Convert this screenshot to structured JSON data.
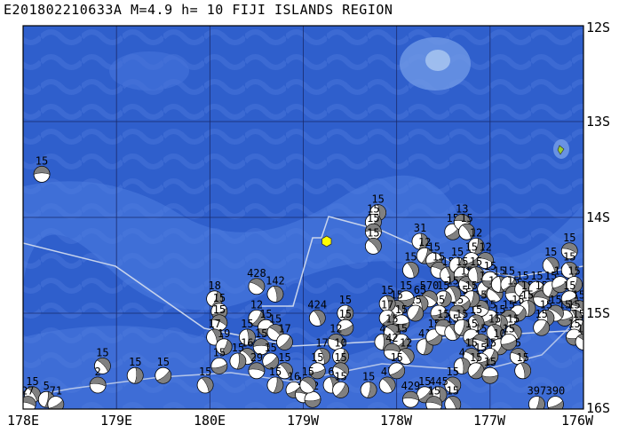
{
  "title": "E201802210633A M=4.9 h= 10 FIJI ISLANDS REGION",
  "colors": {
    "ocean_deep": "#2b57c6",
    "ocean_mid": "#3a68d6",
    "ocean_light": "#5a86e0",
    "shallow": "#86aee8",
    "grid": "#1a2a6a",
    "plate_boundary": "#c8d4ec",
    "event_marker": "#ffff00",
    "island": "#9acd32",
    "mechanism_fill": "#808080"
  },
  "lat_labels": [
    "12S",
    "13S",
    "14S",
    "15S",
    "16S"
  ],
  "lon_labels": [
    "178E",
    "179E",
    "180E",
    "179W",
    "178W",
    "177W",
    "176W"
  ],
  "event": {
    "lon": -178.75,
    "lat": -14.25
  },
  "mechanisms": [
    {
      "lon": 178.2,
      "lat": -13.55,
      "label": "15"
    },
    {
      "lon": 178.85,
      "lat": -15.55,
      "label": "15"
    },
    {
      "lon": 179.2,
      "lat": -15.65,
      "label": "15"
    },
    {
      "lon": 179.5,
      "lat": -15.65,
      "label": "15"
    },
    {
      "lon": 178.8,
      "lat": -15.75,
      "label": "2"
    },
    {
      "lon": 178.1,
      "lat": -15.85,
      "label": "15"
    },
    {
      "lon": 178.25,
      "lat": -15.9,
      "label": "5"
    },
    {
      "lon": 178.35,
      "lat": -15.95,
      "label": "71"
    },
    {
      "lon": 178.05,
      "lat": -15.95,
      "label": "27"
    },
    {
      "lon": 179.95,
      "lat": -15.75,
      "label": "15"
    },
    {
      "lon": 180.05,
      "lat": -14.85,
      "label": "18"
    },
    {
      "lon": 180.1,
      "lat": -14.98,
      "label": "15"
    },
    {
      "lon": 180.1,
      "lat": -15.1,
      "label": "15"
    },
    {
      "lon": 180.05,
      "lat": -15.25,
      "label": "17"
    },
    {
      "lon": 180.15,
      "lat": -15.35,
      "label": "19"
    },
    {
      "lon": 180.1,
      "lat": -15.55,
      "label": "15"
    },
    {
      "lon": -179.5,
      "lat": -14.72,
      "label": "428"
    },
    {
      "lon": -179.3,
      "lat": -14.8,
      "label": "142"
    },
    {
      "lon": -179.5,
      "lat": -15.05,
      "label": "12"
    },
    {
      "lon": -179.4,
      "lat": -15.15,
      "label": "15"
    },
    {
      "lon": -179.3,
      "lat": -15.2,
      "label": "15"
    },
    {
      "lon": -179.6,
      "lat": -15.25,
      "label": "15"
    },
    {
      "lon": -179.2,
      "lat": -15.3,
      "label": "17"
    },
    {
      "lon": -179.45,
      "lat": -15.35,
      "label": "15"
    },
    {
      "lon": -179.6,
      "lat": -15.45,
      "label": "16"
    },
    {
      "lon": -179.7,
      "lat": -15.5,
      "label": "15"
    },
    {
      "lon": -179.35,
      "lat": -15.5,
      "label": "15"
    },
    {
      "lon": -179.5,
      "lat": -15.6,
      "label": "29"
    },
    {
      "lon": -179.2,
      "lat": -15.6,
      "label": "15"
    },
    {
      "lon": -179.3,
      "lat": -15.75,
      "label": "15"
    },
    {
      "lon": -179.1,
      "lat": -15.8,
      "label": "16"
    },
    {
      "lon": -179.0,
      "lat": -15.85,
      "label": "15"
    },
    {
      "lon": -178.85,
      "lat": -15.05,
      "label": "424"
    },
    {
      "lon": -178.55,
      "lat": -15.0,
      "label": "15"
    },
    {
      "lon": -178.55,
      "lat": -15.15,
      "label": "15"
    },
    {
      "lon": -178.65,
      "lat": -15.3,
      "label": "12"
    },
    {
      "lon": -178.8,
      "lat": -15.45,
      "label": "17"
    },
    {
      "lon": -178.6,
      "lat": -15.45,
      "label": "10"
    },
    {
      "lon": -178.85,
      "lat": -15.6,
      "label": "15"
    },
    {
      "lon": -178.6,
      "lat": -15.6,
      "label": "15"
    },
    {
      "lon": -178.7,
      "lat": -15.75,
      "label": "6"
    },
    {
      "lon": -178.6,
      "lat": -15.8,
      "label": "15"
    },
    {
      "lon": -178.9,
      "lat": -15.9,
      "label": "12"
    },
    {
      "lon": -178.95,
      "lat": -15.75,
      "label": "15"
    },
    {
      "lon": -178.2,
      "lat": -13.95,
      "label": "15"
    },
    {
      "lon": -178.25,
      "lat": -14.05,
      "label": "15"
    },
    {
      "lon": -178.25,
      "lat": -14.15,
      "label": "15"
    },
    {
      "lon": -178.25,
      "lat": -14.3,
      "label": "15"
    },
    {
      "lon": -177.75,
      "lat": -14.25,
      "label": "31"
    },
    {
      "lon": -177.4,
      "lat": -14.15,
      "label": "15"
    },
    {
      "lon": -177.3,
      "lat": -14.05,
      "label": "13"
    },
    {
      "lon": -177.25,
      "lat": -14.15,
      "label": "15"
    },
    {
      "lon": -177.15,
      "lat": -14.3,
      "label": "12"
    },
    {
      "lon": -177.2,
      "lat": -14.45,
      "label": "15"
    },
    {
      "lon": -177.05,
      "lat": -14.45,
      "label": "12"
    },
    {
      "lon": -177.85,
      "lat": -14.55,
      "label": "15"
    },
    {
      "lon": -177.7,
      "lat": -14.4,
      "label": "12"
    },
    {
      "lon": -177.6,
      "lat": -14.45,
      "label": "15"
    },
    {
      "lon": -177.55,
      "lat": -14.55,
      "label": "15"
    },
    {
      "lon": -177.45,
      "lat": -14.6,
      "label": "15"
    },
    {
      "lon": -177.35,
      "lat": -14.5,
      "label": "15"
    },
    {
      "lon": -177.3,
      "lat": -14.6,
      "label": "15"
    },
    {
      "lon": -177.25,
      "lat": -14.7,
      "label": "15"
    },
    {
      "lon": -177.15,
      "lat": -14.6,
      "label": "15"
    },
    {
      "lon": -177.05,
      "lat": -14.75,
      "label": "15"
    },
    {
      "lon": -177.0,
      "lat": -14.65,
      "label": "15"
    },
    {
      "lon": -176.95,
      "lat": -14.8,
      "label": "15"
    },
    {
      "lon": -176.9,
      "lat": -14.7,
      "label": "15"
    },
    {
      "lon": -176.8,
      "lat": -14.7,
      "label": "15"
    },
    {
      "lon": -176.75,
      "lat": -14.8,
      "label": "15"
    },
    {
      "lon": -176.65,
      "lat": -14.75,
      "label": "15"
    },
    {
      "lon": -176.6,
      "lat": -14.85,
      "label": "15"
    },
    {
      "lon": -176.5,
      "lat": -14.75,
      "label": "15"
    },
    {
      "lon": -176.45,
      "lat": -14.85,
      "label": "15"
    },
    {
      "lon": -176.35,
      "lat": -14.5,
      "label": "15"
    },
    {
      "lon": -176.35,
      "lat": -14.75,
      "label": "15"
    },
    {
      "lon": -176.25,
      "lat": -14.7,
      "label": "15"
    },
    {
      "lon": -176.15,
      "lat": -14.35,
      "label": "15"
    },
    {
      "lon": -176.15,
      "lat": -14.55,
      "label": "15"
    },
    {
      "lon": -176.1,
      "lat": -14.7,
      "label": "15"
    },
    {
      "lon": -176.15,
      "lat": -14.85,
      "label": "15"
    },
    {
      "lon": -176.05,
      "lat": -14.95,
      "label": "15"
    },
    {
      "lon": -176.1,
      "lat": -15.05,
      "label": "15"
    },
    {
      "lon": -176.05,
      "lat": -15.15,
      "label": "15"
    },
    {
      "lon": -176.2,
      "lat": -15.05,
      "label": "15"
    },
    {
      "lon": -176.3,
      "lat": -15.0,
      "label": "15"
    },
    {
      "lon": -176.4,
      "lat": -15.05,
      "label": "15"
    },
    {
      "lon": -176.45,
      "lat": -15.15,
      "label": "15"
    },
    {
      "lon": -176.1,
      "lat": -15.25,
      "label": "15"
    },
    {
      "lon": -176.0,
      "lat": -15.3,
      "label": "15"
    },
    {
      "lon": -176.6,
      "lat": -14.95,
      "label": "15"
    },
    {
      "lon": -176.7,
      "lat": -15.0,
      "label": "15"
    },
    {
      "lon": -176.8,
      "lat": -15.05,
      "label": "15"
    },
    {
      "lon": -176.75,
      "lat": -15.2,
      "label": "15"
    },
    {
      "lon": -176.9,
      "lat": -15.1,
      "label": "15"
    },
    {
      "lon": -177.0,
      "lat": -15.05,
      "label": "15"
    },
    {
      "lon": -177.1,
      "lat": -14.95,
      "label": "15"
    },
    {
      "lon": -177.15,
      "lat": -15.1,
      "label": "15"
    },
    {
      "lon": -177.2,
      "lat": -14.85,
      "label": "15"
    },
    {
      "lon": -177.3,
      "lat": -14.9,
      "label": "15"
    },
    {
      "lon": -177.35,
      "lat": -15.0,
      "label": "15"
    },
    {
      "lon": -177.4,
      "lat": -14.8,
      "label": "15"
    },
    {
      "lon": -177.5,
      "lat": -14.85,
      "label": "15"
    },
    {
      "lon": -177.55,
      "lat": -15.0,
      "label": "15"
    },
    {
      "lon": -177.65,
      "lat": -14.85,
      "label": "570"
    },
    {
      "lon": -177.75,
      "lat": -14.9,
      "label": "65"
    },
    {
      "lon": -177.8,
      "lat": -15.0,
      "label": "15"
    },
    {
      "lon": -177.9,
      "lat": -14.85,
      "label": "15"
    },
    {
      "lon": -178.0,
      "lat": -14.95,
      "label": "15"
    },
    {
      "lon": -178.1,
      "lat": -14.9,
      "label": "15"
    },
    {
      "lon": -178.1,
      "lat": -15.05,
      "label": "17"
    },
    {
      "lon": -177.95,
      "lat": -15.1,
      "label": "15"
    },
    {
      "lon": -178.05,
      "lat": -15.2,
      "label": "15"
    },
    {
      "lon": -178.15,
      "lat": -15.3,
      "label": "4"
    },
    {
      "lon": -177.95,
      "lat": -15.3,
      "label": "15"
    },
    {
      "lon": -178.05,
      "lat": -15.4,
      "label": "42"
    },
    {
      "lon": -177.9,
      "lat": -15.45,
      "label": "12"
    },
    {
      "lon": -177.7,
      "lat": -15.35,
      "label": "41"
    },
    {
      "lon": -177.6,
      "lat": -15.25,
      "label": "15"
    },
    {
      "lon": -177.5,
      "lat": -15.15,
      "label": "15"
    },
    {
      "lon": -177.4,
      "lat": -15.2,
      "label": "15"
    },
    {
      "lon": -177.3,
      "lat": -15.15,
      "label": "15"
    },
    {
      "lon": -177.2,
      "lat": -15.25,
      "label": "15"
    },
    {
      "lon": -177.1,
      "lat": -15.3,
      "label": "15"
    },
    {
      "lon": -176.95,
      "lat": -15.2,
      "label": "15"
    },
    {
      "lon": -176.9,
      "lat": -15.35,
      "label": "10"
    },
    {
      "lon": -176.8,
      "lat": -15.3,
      "label": "15"
    },
    {
      "lon": -176.7,
      "lat": -15.45,
      "label": "5"
    },
    {
      "lon": -176.65,
      "lat": -15.6,
      "label": "15"
    },
    {
      "lon": -177.0,
      "lat": -15.45,
      "label": "15"
    },
    {
      "lon": -177.1,
      "lat": -15.5,
      "label": "15"
    },
    {
      "lon": -177.2,
      "lat": -15.45,
      "label": "15"
    },
    {
      "lon": -177.3,
      "lat": -15.55,
      "label": "4"
    },
    {
      "lon": -177.15,
      "lat": -15.6,
      "label": "15"
    },
    {
      "lon": -177.0,
      "lat": -15.65,
      "label": "15"
    },
    {
      "lon": -177.4,
      "lat": -15.75,
      "label": "15"
    },
    {
      "lon": -177.55,
      "lat": -15.85,
      "label": "445"
    },
    {
      "lon": -177.7,
      "lat": -15.85,
      "label": "15"
    },
    {
      "lon": -177.85,
      "lat": -15.9,
      "label": "429"
    },
    {
      "lon": -178.1,
      "lat": -15.75,
      "label": "47"
    },
    {
      "lon": -178.3,
      "lat": -15.8,
      "label": "15"
    },
    {
      "lon": -178.0,
      "lat": -15.6,
      "label": "15"
    },
    {
      "lon": -177.6,
      "lat": -15.95,
      "label": "15"
    },
    {
      "lon": -177.4,
      "lat": -15.95,
      "label": "15"
    },
    {
      "lon": -176.5,
      "lat": -15.95,
      "label": "397"
    },
    {
      "lon": -176.3,
      "lat": -15.95,
      "label": "390"
    }
  ]
}
